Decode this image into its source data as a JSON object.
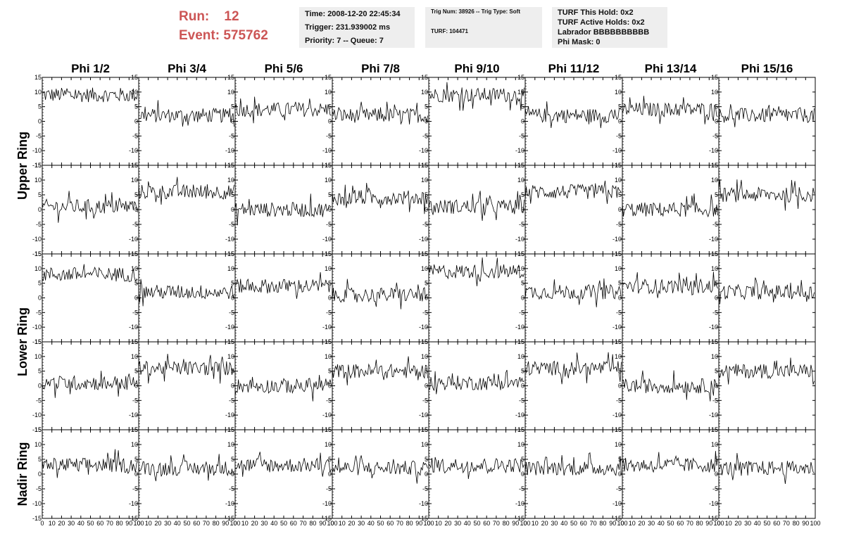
{
  "header": {
    "run_label": "Run:",
    "run_value": "12",
    "event_label": "Event:",
    "event_value": "575762"
  },
  "time_box": {
    "time": "Time: 2008-12-20 22:45:34",
    "trigger": "Trigger: 231.939002 ms",
    "priority": "Priority: 7 -- Queue: 7"
  },
  "trig_box": {
    "trig": "Trig Num: 38926 -- Trig Type: Soft",
    "turf": "TURF: 104471"
  },
  "turf_box": {
    "this_hold": "TURF This Hold: 0x2",
    "active_holds": "TURF Active Holds: 0x2",
    "labrador": "Labrador BBBBBBBBBB",
    "phi_mask": "Phi Mask: 0"
  },
  "chart_data": {
    "type": "line",
    "columns": [
      "Phi 1/2",
      "Phi 3/4",
      "Phi 5/6",
      "Phi 7/8",
      "Phi 9/10",
      "Phi 11/12",
      "Phi 13/14",
      "Phi 15/16"
    ],
    "rings": [
      "Upper Ring",
      "Lower Ring",
      "Nadir Ring"
    ],
    "xlim": [
      0,
      100
    ],
    "ylim": [
      -15,
      15
    ],
    "x_ticks": [
      "0",
      "10",
      "20",
      "30",
      "40",
      "50",
      "60",
      "70",
      "80",
      "90",
      "100"
    ],
    "y_ticks": [
      "15",
      "10",
      "5",
      "0",
      "-5",
      "-10",
      "-15"
    ],
    "baseline_offsets": [
      [
        9,
        2,
        4,
        2,
        9,
        2,
        4,
        2
      ],
      [
        1,
        6,
        0,
        4,
        1,
        6,
        0,
        5
      ],
      [
        8,
        2,
        4,
        1,
        9,
        2,
        4,
        2
      ],
      [
        1,
        6,
        0,
        5,
        1,
        6,
        0,
        5
      ],
      [
        3,
        2,
        3,
        2,
        3,
        2,
        3,
        2
      ]
    ],
    "noise_amplitude": 2.5,
    "samples_per_trace": 90
  }
}
